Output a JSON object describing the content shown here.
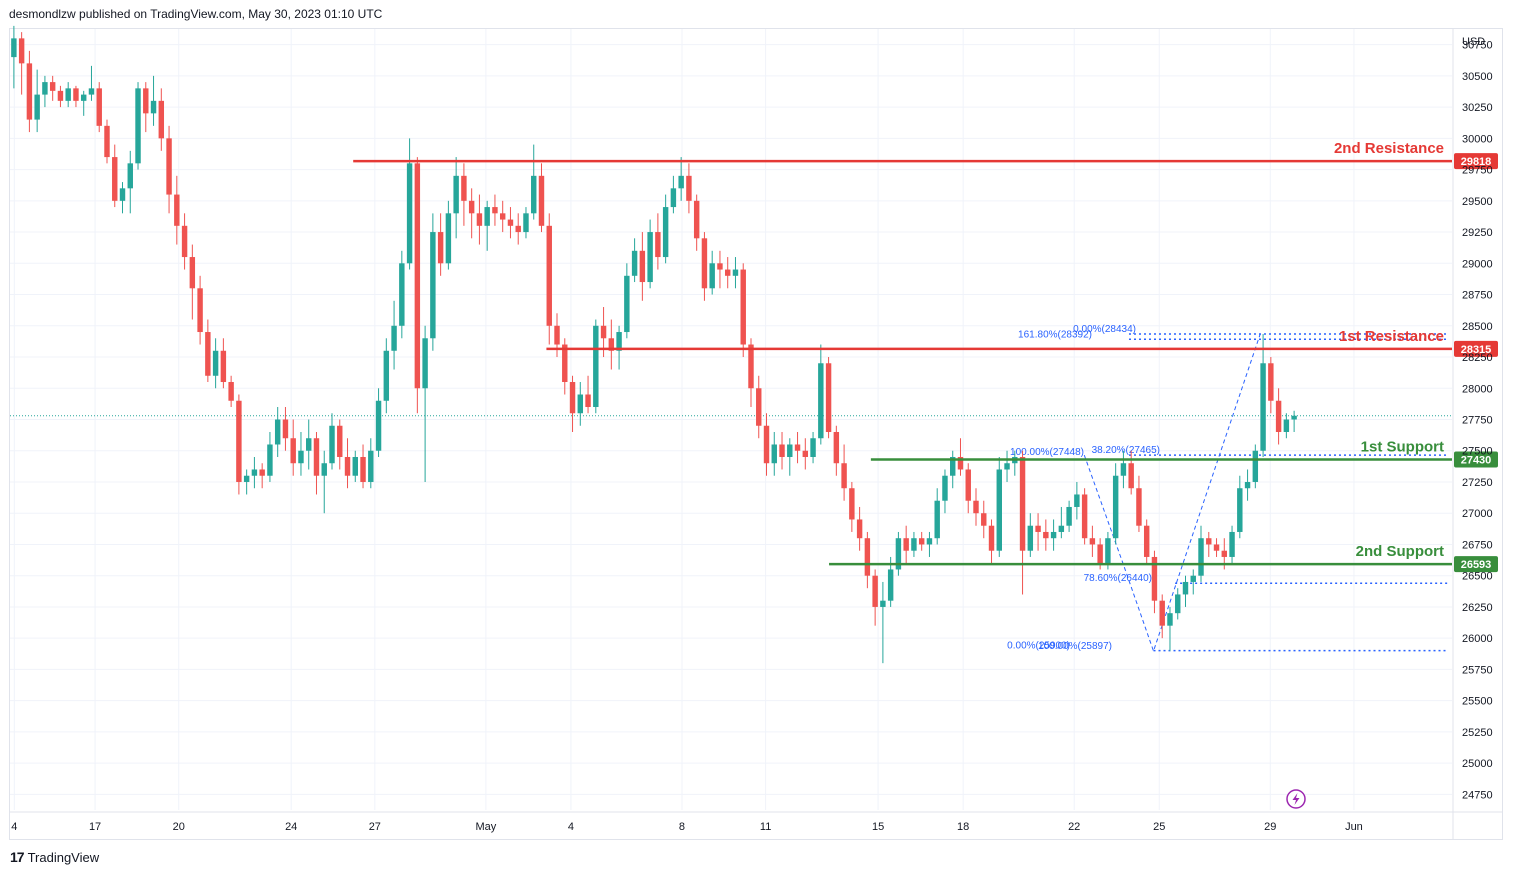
{
  "header": {
    "text": "desmondlzw published on TradingView.com, May 30, 2023 01:10 UTC"
  },
  "footer": {
    "logo": "17",
    "brand": "TradingView"
  },
  "icons": {
    "lightning": "lightning-icon"
  },
  "colors": {
    "up": "#26a69a",
    "down": "#ef5350",
    "resistance": "#e53935",
    "support": "#388e3c",
    "fib": "#2962ff",
    "grid": "#f0f3fa",
    "axis_text": "#131722"
  },
  "chart_data": {
    "type": "candlestick",
    "currency": "USD",
    "ylim": [
      24625,
      30875
    ],
    "y_ticks": [
      24750,
      25000,
      25250,
      25500,
      25750,
      26000,
      26250,
      26500,
      26750,
      27000,
      27250,
      27500,
      27750,
      28000,
      28250,
      28500,
      28750,
      29000,
      29250,
      29500,
      29750,
      30000,
      30250,
      30500,
      30750
    ],
    "x_labels": [
      "4",
      "17",
      "20",
      "24",
      "27",
      "May",
      "4",
      "8",
      "11",
      "15",
      "18",
      "22",
      "25",
      "29",
      "Jun"
    ],
    "last_price": 27780,
    "levels": [
      {
        "name": "2nd Resistance",
        "value": 29818,
        "label": "29818",
        "type": "resistance",
        "x_from": 0.238
      },
      {
        "name": "1st Resistance",
        "value": 28315,
        "label": "28315",
        "type": "resistance",
        "x_from": 0.372
      },
      {
        "name": "1st Support",
        "value": 27430,
        "label": "27430",
        "type": "support",
        "x_from": 0.597
      },
      {
        "name": "2nd Support",
        "value": 26593,
        "label": "26593",
        "type": "support",
        "x_from": 0.568
      }
    ],
    "fib_labels": [
      {
        "text": "161.80%(28392)",
        "value": 28392
      },
      {
        "text": "0.00%(28434)",
        "value": 28434
      },
      {
        "text": "100.00%(27448)",
        "value": 27448
      },
      {
        "text": "38.20%(27465)",
        "value": 27465
      },
      {
        "text": "78.60%(26440)",
        "value": 26440
      },
      {
        "text": "0.00%(25900)",
        "value": 25900
      },
      {
        "text": "100.00%(25897)",
        "value": 25897
      }
    ],
    "fib_lines": [
      {
        "value": 28434,
        "x_from": 0.776
      },
      {
        "value": 28392,
        "x_from": 0.776
      },
      {
        "value": 27465,
        "x_from": 0.776
      },
      {
        "value": 26440,
        "x_from": 0.808
      },
      {
        "value": 25900,
        "x_from": 0.793
      }
    ],
    "fib_paths": [
      [
        [
          0.745,
          27465
        ],
        [
          0.772,
          26593
        ],
        [
          0.793,
          25897
        ],
        [
          0.867,
          28434
        ]
      ]
    ],
    "candles": [
      [
        30650,
        30900,
        30400,
        30800
      ],
      [
        30800,
        30850,
        30350,
        30600
      ],
      [
        30600,
        30700,
        30050,
        30150
      ],
      [
        30150,
        30550,
        30050,
        30350
      ],
      [
        30350,
        30500,
        30250,
        30450
      ],
      [
        30450,
        30500,
        30300,
        30380
      ],
      [
        30380,
        30420,
        30250,
        30300
      ],
      [
        30300,
        30450,
        30250,
        30400
      ],
      [
        30400,
        30420,
        30250,
        30300
      ],
      [
        30300,
        30380,
        30180,
        30350
      ],
      [
        30350,
        30580,
        30300,
        30400
      ],
      [
        30400,
        30450,
        30050,
        30100
      ],
      [
        30100,
        30150,
        29800,
        29850
      ],
      [
        29850,
        29950,
        29450,
        29500
      ],
      [
        29500,
        29650,
        29400,
        29600
      ],
      [
        29600,
        29900,
        29400,
        29800
      ],
      [
        29800,
        30450,
        29750,
        30400
      ],
      [
        30400,
        30450,
        30050,
        30200
      ],
      [
        30200,
        30500,
        30100,
        30300
      ],
      [
        30300,
        30400,
        29900,
        30000
      ],
      [
        30000,
        30100,
        29400,
        29550
      ],
      [
        29550,
        29700,
        29150,
        29300
      ],
      [
        29300,
        29400,
        28950,
        29050
      ],
      [
        29050,
        29150,
        28550,
        28800
      ],
      [
        28800,
        28900,
        28350,
        28450
      ],
      [
        28450,
        28550,
        28050,
        28100
      ],
      [
        28100,
        28400,
        28000,
        28300
      ],
      [
        28300,
        28400,
        28000,
        28050
      ],
      [
        28050,
        28100,
        27850,
        27900
      ],
      [
        27900,
        27950,
        27150,
        27250
      ],
      [
        27250,
        27350,
        27150,
        27300
      ],
      [
        27300,
        27450,
        27200,
        27350
      ],
      [
        27350,
        27400,
        27200,
        27300
      ],
      [
        27300,
        27650,
        27250,
        27550
      ],
      [
        27550,
        27850,
        27450,
        27750
      ],
      [
        27750,
        27850,
        27500,
        27600
      ],
      [
        27600,
        27750,
        27300,
        27400
      ],
      [
        27400,
        27650,
        27300,
        27500
      ],
      [
        27500,
        27750,
        27350,
        27600
      ],
      [
        27600,
        27650,
        27150,
        27300
      ],
      [
        27300,
        27500,
        27000,
        27400
      ],
      [
        27400,
        27800,
        27350,
        27700
      ],
      [
        27700,
        27750,
        27350,
        27450
      ],
      [
        27450,
        27600,
        27200,
        27300
      ],
      [
        27300,
        27500,
        27250,
        27450
      ],
      [
        27450,
        27550,
        27200,
        27250
      ],
      [
        27250,
        27600,
        27200,
        27500
      ],
      [
        27500,
        28000,
        27450,
        27900
      ],
      [
        27900,
        28400,
        27800,
        28300
      ],
      [
        28300,
        28700,
        28150,
        28500
      ],
      [
        28500,
        29100,
        28400,
        29000
      ],
      [
        29000,
        30000,
        28950,
        29800
      ],
      [
        29800,
        29850,
        27800,
        28000
      ],
      [
        28000,
        28500,
        27250,
        28400
      ],
      [
        28400,
        29400,
        28300,
        29250
      ],
      [
        29250,
        29400,
        28900,
        29000
      ],
      [
        29000,
        29500,
        28950,
        29400
      ],
      [
        29400,
        29850,
        29200,
        29700
      ],
      [
        29700,
        29800,
        29300,
        29500
      ],
      [
        29500,
        29600,
        29200,
        29400
      ],
      [
        29400,
        29550,
        29150,
        29300
      ],
      [
        29300,
        29500,
        29100,
        29450
      ],
      [
        29450,
        29550,
        29300,
        29400
      ],
      [
        29400,
        29500,
        29250,
        29350
      ],
      [
        29350,
        29450,
        29200,
        29300
      ],
      [
        29300,
        29400,
        29150,
        29250
      ],
      [
        29250,
        29450,
        29200,
        29400
      ],
      [
        29400,
        29950,
        29350,
        29700
      ],
      [
        29700,
        29800,
        29250,
        29300
      ],
      [
        29300,
        29400,
        28350,
        28500
      ],
      [
        28500,
        28600,
        28250,
        28350
      ],
      [
        28350,
        28400,
        27950,
        28050
      ],
      [
        28050,
        28100,
        27650,
        27800
      ],
      [
        27800,
        28050,
        27700,
        27950
      ],
      [
        27950,
        28100,
        27800,
        27850
      ],
      [
        27850,
        28550,
        27800,
        28500
      ],
      [
        28500,
        28650,
        28250,
        28400
      ],
      [
        28400,
        28550,
        28150,
        28300
      ],
      [
        28300,
        28500,
        28150,
        28450
      ],
      [
        28450,
        29000,
        28400,
        28900
      ],
      [
        28900,
        29200,
        28850,
        29100
      ],
      [
        29100,
        29250,
        28700,
        28850
      ],
      [
        28850,
        29350,
        28800,
        29250
      ],
      [
        29250,
        29400,
        28950,
        29050
      ],
      [
        29050,
        29550,
        29000,
        29450
      ],
      [
        29450,
        29700,
        29400,
        29600
      ],
      [
        29600,
        29850,
        29500,
        29700
      ],
      [
        29700,
        29800,
        29400,
        29500
      ],
      [
        29500,
        29550,
        29100,
        29200
      ],
      [
        29200,
        29250,
        28700,
        28800
      ],
      [
        28800,
        29100,
        28750,
        29000
      ],
      [
        29000,
        29100,
        28800,
        28950
      ],
      [
        28950,
        29050,
        28800,
        28900
      ],
      [
        28900,
        29050,
        28800,
        28950
      ],
      [
        28950,
        29000,
        28250,
        28350
      ],
      [
        28350,
        28400,
        27850,
        28000
      ],
      [
        28000,
        28100,
        27600,
        27700
      ],
      [
        27700,
        27800,
        27300,
        27400
      ],
      [
        27400,
        27650,
        27300,
        27550
      ],
      [
        27550,
        27650,
        27350,
        27450
      ],
      [
        27450,
        27600,
        27300,
        27550
      ],
      [
        27550,
        27650,
        27400,
        27500
      ],
      [
        27500,
        27600,
        27350,
        27450
      ],
      [
        27450,
        27650,
        27400,
        27600
      ],
      [
        27600,
        28350,
        27550,
        28200
      ],
      [
        28200,
        28250,
        27600,
        27650
      ],
      [
        27650,
        27700,
        27300,
        27400
      ],
      [
        27400,
        27550,
        27100,
        27200
      ],
      [
        27200,
        27250,
        26850,
        26950
      ],
      [
        26950,
        27050,
        26700,
        26800
      ],
      [
        26800,
        26850,
        26400,
        26500
      ],
      [
        26500,
        26550,
        26100,
        26250
      ],
      [
        26250,
        26450,
        25800,
        26300
      ],
      [
        26300,
        26650,
        26250,
        26550
      ],
      [
        26550,
        26850,
        26500,
        26800
      ],
      [
        26800,
        26900,
        26600,
        26700
      ],
      [
        26700,
        26850,
        26650,
        26800
      ],
      [
        26800,
        26850,
        26700,
        26750
      ],
      [
        26750,
        26850,
        26650,
        26800
      ],
      [
        26800,
        27200,
        26750,
        27100
      ],
      [
        27100,
        27350,
        27000,
        27300
      ],
      [
        27300,
        27500,
        27200,
        27450
      ],
      [
        27450,
        27600,
        27300,
        27350
      ],
      [
        27350,
        27400,
        27000,
        27100
      ],
      [
        27100,
        27200,
        26900,
        27000
      ],
      [
        27000,
        27100,
        26800,
        26900
      ],
      [
        26900,
        26950,
        26600,
        26700
      ],
      [
        26700,
        27450,
        26650,
        27350
      ],
      [
        27350,
        27500,
        27250,
        27400
      ],
      [
        27400,
        27500,
        27300,
        27450
      ],
      [
        27450,
        27500,
        26350,
        26700
      ],
      [
        26700,
        27000,
        26650,
        26900
      ],
      [
        26900,
        27000,
        26700,
        26850
      ],
      [
        26850,
        26950,
        26700,
        26800
      ],
      [
        26800,
        26950,
        26700,
        26850
      ],
      [
        26850,
        27050,
        26800,
        26900
      ],
      [
        26900,
        27100,
        26850,
        27050
      ],
      [
        27050,
        27250,
        26950,
        27150
      ],
      [
        27150,
        27200,
        26750,
        26800
      ],
      [
        26800,
        26900,
        26650,
        26750
      ],
      [
        26750,
        26800,
        26550,
        26600
      ],
      [
        26600,
        26850,
        26550,
        26800
      ],
      [
        26800,
        27400,
        26750,
        27300
      ],
      [
        27300,
        27500,
        27200,
        27400
      ],
      [
        27400,
        27500,
        27150,
        27200
      ],
      [
        27200,
        27300,
        26850,
        26900
      ],
      [
        26900,
        26950,
        26600,
        26650
      ],
      [
        26650,
        26700,
        26200,
        26300
      ],
      [
        26300,
        26350,
        26000,
        26100
      ],
      [
        26100,
        26250,
        25897,
        26200
      ],
      [
        26200,
        26400,
        26150,
        26350
      ],
      [
        26350,
        26500,
        26250,
        26450
      ],
      [
        26450,
        26550,
        26350,
        26500
      ],
      [
        26500,
        26900,
        26450,
        26800
      ],
      [
        26800,
        26850,
        26650,
        26750
      ],
      [
        26750,
        26800,
        26650,
        26700
      ],
      [
        26700,
        26800,
        26550,
        26650
      ],
      [
        26650,
        26900,
        26600,
        26850
      ],
      [
        26850,
        27300,
        26800,
        27200
      ],
      [
        27200,
        27350,
        27100,
        27250
      ],
      [
        27250,
        27550,
        27200,
        27500
      ],
      [
        27500,
        28434,
        27450,
        28200
      ],
      [
        28200,
        28250,
        27800,
        27900
      ],
      [
        27900,
        28000,
        27550,
        27650
      ],
      [
        27650,
        27800,
        27600,
        27750
      ],
      [
        27750,
        27820,
        27650,
        27780
      ]
    ]
  }
}
